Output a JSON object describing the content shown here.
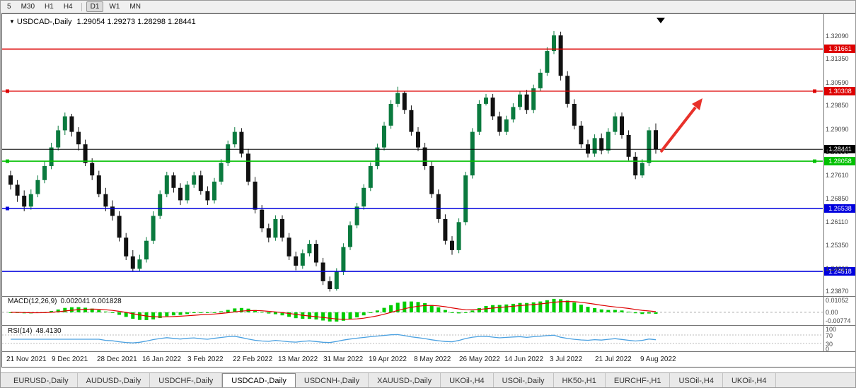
{
  "toolbar": {
    "timeframes": [
      "5",
      "M30",
      "H1",
      "H4",
      "D1",
      "W1",
      "MN"
    ],
    "active_timeframe": "D1"
  },
  "title_bar": {
    "symbol": "USDCAD-,Daily",
    "quote": "1.29054 1.29273 1.28298 1.28441"
  },
  "chart_data": {
    "type": "candlestick",
    "symbol": "USDCAD-,Daily",
    "timeframe": "Daily",
    "ohlc_quote": {
      "open": 1.29054,
      "high": 1.29273,
      "low": 1.28298,
      "close": 1.28441
    },
    "price_range": [
      1.23722,
      1.32715
    ],
    "y_ticks": [
      1.3209,
      1.3135,
      1.3059,
      1.2985,
      1.2909,
      1.2835,
      1.2761,
      1.2685,
      1.2611,
      1.2535,
      1.2461,
      1.2387
    ],
    "x_labels": [
      "21 Nov 2021",
      "9 Dec 2021",
      "28 Dec 2021",
      "16 Jan 2022",
      "3 Feb 2022",
      "22 Feb 2022",
      "13 Mar 2022",
      "31 Mar 2022",
      "19 Apr 2022",
      "8 May 2022",
      "26 May 2022",
      "14 Jun 2022",
      "3 Jul 2022",
      "21 Jul 2022",
      "9 Aug 2022"
    ],
    "h_lines": [
      {
        "price": 1.31661,
        "label": "1.31661",
        "color": "#dd0000",
        "width": 1.6,
        "handles": "none"
      },
      {
        "price": 1.30308,
        "label": "1.30308",
        "color": "#dd0000",
        "width": 1.3,
        "handles": "both"
      },
      {
        "price": 1.28441,
        "label": "1.28441",
        "color": "#000000",
        "width": 1.0,
        "handles": "none"
      },
      {
        "price": 1.28058,
        "label": "1.28058",
        "color": "#00c000",
        "width": 1.6,
        "handles": "both"
      },
      {
        "price": 1.26538,
        "label": "1.26538",
        "color": "#0000dd",
        "width": 1.6,
        "handles": "left"
      },
      {
        "price": 1.24518,
        "label": "1.24518",
        "color": "#0000dd",
        "width": 1.6,
        "handles": "none"
      }
    ],
    "candles": [
      [
        1.276,
        1.2775,
        1.2715,
        1.273
      ],
      [
        1.273,
        1.2745,
        1.2675,
        1.2695
      ],
      [
        1.2695,
        1.2712,
        1.2645,
        1.266
      ],
      [
        1.266,
        1.2715,
        1.265,
        1.27
      ],
      [
        1.27,
        1.276,
        1.269,
        1.2745
      ],
      [
        1.2745,
        1.2805,
        1.2735,
        1.279
      ],
      [
        1.279,
        1.2865,
        1.278,
        1.285
      ],
      [
        1.285,
        1.292,
        1.284,
        1.2905
      ],
      [
        1.2905,
        1.2962,
        1.289,
        1.295
      ],
      [
        1.295,
        1.2958,
        1.2885,
        1.29
      ],
      [
        1.29,
        1.2915,
        1.284,
        1.286
      ],
      [
        1.286,
        1.2875,
        1.279,
        1.28
      ],
      [
        1.28,
        1.2815,
        1.2745,
        1.276
      ],
      [
        1.276,
        1.2775,
        1.269,
        1.27
      ],
      [
        1.27,
        1.272,
        1.2645,
        1.266
      ],
      [
        1.266,
        1.268,
        1.2615,
        1.263
      ],
      [
        1.263,
        1.2645,
        1.2548,
        1.256
      ],
      [
        1.256,
        1.2575,
        1.2488,
        1.25
      ],
      [
        1.25,
        1.252,
        1.245,
        1.246
      ],
      [
        1.246,
        1.2505,
        1.2452,
        1.249
      ],
      [
        1.249,
        1.2562,
        1.248,
        1.255
      ],
      [
        1.255,
        1.2645,
        1.254,
        1.263
      ],
      [
        1.263,
        1.2712,
        1.262,
        1.27
      ],
      [
        1.27,
        1.2772,
        1.269,
        1.276
      ],
      [
        1.276,
        1.277,
        1.2705,
        1.272
      ],
      [
        1.272,
        1.2735,
        1.2665,
        1.268
      ],
      [
        1.268,
        1.2742,
        1.267,
        1.273
      ],
      [
        1.273,
        1.2772,
        1.272,
        1.276
      ],
      [
        1.276,
        1.2775,
        1.2698,
        1.271
      ],
      [
        1.271,
        1.2725,
        1.2665,
        1.268
      ],
      [
        1.268,
        1.2752,
        1.267,
        1.274
      ],
      [
        1.274,
        1.2812,
        1.273,
        1.28
      ],
      [
        1.28,
        1.2872,
        1.279,
        1.286
      ],
      [
        1.286,
        1.2915,
        1.285,
        1.29
      ],
      [
        1.29,
        1.2912,
        1.2818,
        1.283
      ],
      [
        1.283,
        1.2845,
        1.2728,
        1.274
      ],
      [
        1.274,
        1.2755,
        1.2638,
        1.265
      ],
      [
        1.265,
        1.2665,
        1.2578,
        1.259
      ],
      [
        1.259,
        1.2605,
        1.2545,
        1.256
      ],
      [
        1.256,
        1.2632,
        1.255,
        1.262
      ],
      [
        1.262,
        1.2632,
        1.2548,
        1.256
      ],
      [
        1.256,
        1.2575,
        1.2488,
        1.25
      ],
      [
        1.25,
        1.2515,
        1.2455,
        1.247
      ],
      [
        1.247,
        1.2522,
        1.246,
        1.251
      ],
      [
        1.251,
        1.2552,
        1.25,
        1.254
      ],
      [
        1.254,
        1.2552,
        1.2468,
        1.248
      ],
      [
        1.248,
        1.2495,
        1.2408,
        1.242
      ],
      [
        1.242,
        1.2435,
        1.2387,
        1.2395
      ],
      [
        1.2395,
        1.2462,
        1.239,
        1.245
      ],
      [
        1.245,
        1.2542,
        1.244,
        1.253
      ],
      [
        1.253,
        1.2612,
        1.252,
        1.26
      ],
      [
        1.26,
        1.2672,
        1.259,
        1.266
      ],
      [
        1.266,
        1.2732,
        1.265,
        1.272
      ],
      [
        1.272,
        1.2802,
        1.271,
        1.279
      ],
      [
        1.279,
        1.2862,
        1.278,
        1.285
      ],
      [
        1.285,
        1.2932,
        1.284,
        1.292
      ],
      [
        1.292,
        1.3002,
        1.291,
        1.299
      ],
      [
        1.299,
        1.3045,
        1.298,
        1.3025
      ],
      [
        1.3025,
        1.3032,
        1.2958,
        1.297
      ],
      [
        1.297,
        1.2985,
        1.2888,
        1.29
      ],
      [
        1.29,
        1.2915,
        1.2838,
        1.285
      ],
      [
        1.285,
        1.2865,
        1.2778,
        1.279
      ],
      [
        1.279,
        1.2805,
        1.2688,
        1.27
      ],
      [
        1.27,
        1.2715,
        1.2608,
        1.262
      ],
      [
        1.262,
        1.2635,
        1.2538,
        1.255
      ],
      [
        1.255,
        1.2565,
        1.2505,
        1.252
      ],
      [
        1.252,
        1.2622,
        1.251,
        1.261
      ],
      [
        1.261,
        1.2772,
        1.26,
        1.276
      ],
      [
        1.276,
        1.2912,
        1.275,
        1.29
      ],
      [
        1.29,
        1.3002,
        1.289,
        1.299
      ],
      [
        1.299,
        1.3022,
        1.2985,
        1.301
      ],
      [
        1.301,
        1.3022,
        1.2938,
        1.295
      ],
      [
        1.295,
        1.2965,
        1.2888,
        1.29
      ],
      [
        1.29,
        1.2952,
        1.289,
        1.294
      ],
      [
        1.294,
        1.2992,
        1.293,
        1.298
      ],
      [
        1.298,
        1.3032,
        1.297,
        1.302
      ],
      [
        1.302,
        1.3035,
        1.2958,
        1.297
      ],
      [
        1.297,
        1.3052,
        1.296,
        1.304
      ],
      [
        1.304,
        1.3102,
        1.303,
        1.309
      ],
      [
        1.309,
        1.3172,
        1.308,
        1.316
      ],
      [
        1.316,
        1.3224,
        1.315,
        1.321
      ],
      [
        1.321,
        1.3222,
        1.3065,
        1.308
      ],
      [
        1.308,
        1.3095,
        1.2978,
        1.299
      ],
      [
        1.299,
        1.3005,
        1.2908,
        1.292
      ],
      [
        1.292,
        1.2935,
        1.2848,
        1.286
      ],
      [
        1.286,
        1.2875,
        1.2818,
        1.283
      ],
      [
        1.283,
        1.2892,
        1.282,
        1.288
      ],
      [
        1.288,
        1.2895,
        1.2828,
        1.284
      ],
      [
        1.284,
        1.2912,
        1.283,
        1.29
      ],
      [
        1.29,
        1.2962,
        1.289,
        1.295
      ],
      [
        1.295,
        1.2962,
        1.2878,
        1.289
      ],
      [
        1.289,
        1.2905,
        1.2808,
        1.282
      ],
      [
        1.282,
        1.2835,
        1.2748,
        1.276
      ],
      [
        1.276,
        1.2812,
        1.2752,
        1.28
      ],
      [
        1.28,
        1.2915,
        1.279,
        1.2905
      ],
      [
        1.29054,
        1.29273,
        1.28298,
        1.28441
      ]
    ],
    "macd": {
      "label": "MACD(12,26,9)",
      "values": "0.002041 0.001828",
      "axis_labels": [
        "0.01052",
        "0.00",
        "-0.00774"
      ],
      "range": [
        -0.0085,
        0.0112
      ],
      "histogram_color": "#00cc00",
      "signal_color": "#dd0000"
    },
    "rsi": {
      "label": "RSI(14)",
      "value": "48.4130",
      "axis_labels": [
        "100",
        "70",
        "30",
        "0"
      ],
      "levels": [
        70,
        30
      ],
      "line_color": "#4aa0e0"
    },
    "annotations": {
      "trend_arrow": {
        "color": "#e8312a",
        "direction": "up-right"
      }
    },
    "colors": {
      "bull": "#0a7a3e",
      "bear": "#111111",
      "background": "#ffffff",
      "axis_text": "#444444"
    }
  },
  "tabs": {
    "items": [
      "EURUSD-,Daily",
      "AUDUSD-,Daily",
      "USDCHF-,Daily",
      "USDCAD-,Daily",
      "USDCNH-,Daily",
      "XAUUSD-,Daily",
      "UKOil-,H4",
      "USOil-,Daily",
      "HK50-,H1",
      "EURCHF-,H1",
      "USOil-,H4",
      "UKOil-,H4"
    ],
    "active": "USDCAD-,Daily"
  }
}
